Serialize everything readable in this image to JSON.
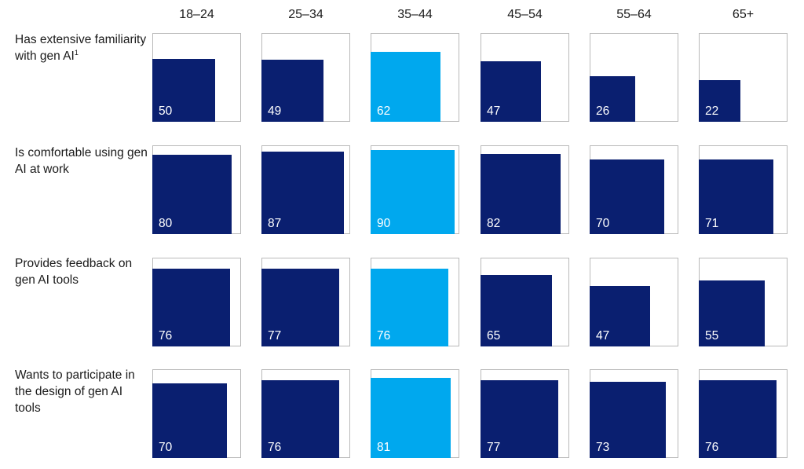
{
  "chart_data": {
    "type": "bar",
    "columns": [
      "18–24",
      "25–34",
      "35–44",
      "45–54",
      "55–64",
      "65+"
    ],
    "rows": [
      {
        "label": "Has extensive familiarity with gen AI",
        "footnote": "1",
        "values": [
          50,
          49,
          62,
          47,
          26,
          22
        ]
      },
      {
        "label": "Is comfortable using gen AI at work",
        "values": [
          80,
          87,
          90,
          82,
          70,
          71
        ]
      },
      {
        "label": "Provides feedback on gen AI tools",
        "values": [
          76,
          77,
          76,
          65,
          47,
          55
        ]
      },
      {
        "label": "Wants to participate in the design of gen AI tools",
        "values": [
          70,
          76,
          81,
          77,
          73,
          76
        ]
      }
    ],
    "highlight_column": "35–44",
    "ylim": [
      0,
      100
    ],
    "colors": {
      "default": "#0a1f70",
      "highlight": "#00a8ee",
      "frame": "#b9b9b9"
    }
  }
}
